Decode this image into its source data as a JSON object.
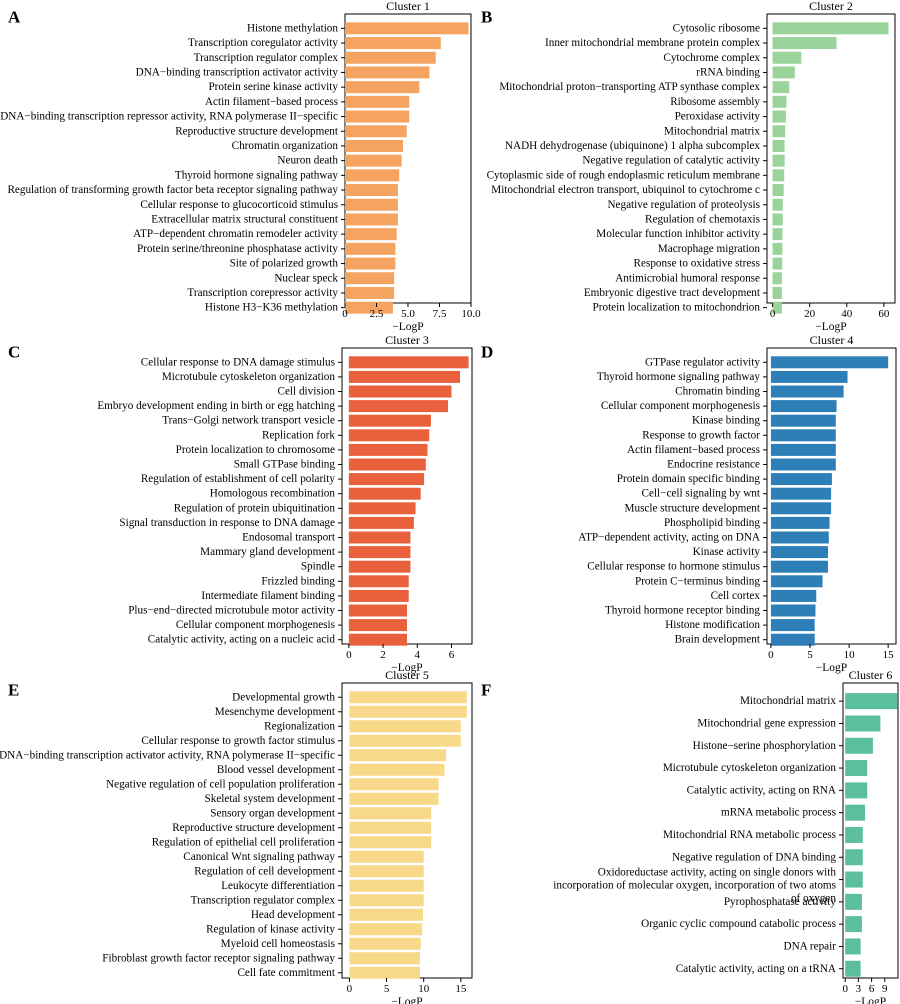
{
  "figure": {
    "panels": [
      {
        "letter": "A",
        "title": "Cluster 1",
        "color": "#F4A460",
        "xlabel": "−LogP",
        "plot": [
          345,
          14,
          471,
          303
        ],
        "xlim": [
          0,
          10
        ],
        "ticks": [
          0,
          2.5,
          5,
          7.5,
          10
        ],
        "tick_labels": [
          "0",
          "2.5",
          "5.0",
          "7.5",
          "10.0"
        ],
        "labelH": 14.7,
        "barH": 12
      },
      {
        "letter": "B",
        "title": "Cluster 2",
        "color": "#9AD49A",
        "xlabel": "−LogP",
        "plot": [
          767,
          14,
          895,
          303
        ],
        "xlim": [
          -3,
          66
        ],
        "ticks": [
          0,
          20,
          40,
          60
        ],
        "tick_labels": [
          "0",
          "20",
          "40",
          "60"
        ],
        "labelH": 14.7,
        "barH": 12
      },
      {
        "letter": "C",
        "title": "Cluster 3",
        "color": "#E8603C",
        "xlabel": "−LogP",
        "plot": [
          342,
          348,
          472,
          644
        ],
        "xlim": [
          -0.4,
          7.2
        ],
        "ticks": [
          0,
          2,
          4,
          6
        ],
        "tick_labels": [
          "0",
          "2",
          "4",
          "6"
        ],
        "labelH": 14.6,
        "barH": 12
      },
      {
        "letter": "D",
        "title": "Cluster 4",
        "color": "#2E7EB8",
        "xlabel": "−LogP",
        "plot": [
          767,
          348,
          896,
          644
        ],
        "xlim": [
          -0.5,
          16
        ],
        "ticks": [
          0,
          5,
          10,
          15
        ],
        "tick_labels": [
          "0",
          "5",
          "10",
          "15"
        ],
        "labelH": 14.6,
        "barH": 12
      },
      {
        "letter": "E",
        "title": "Cluster 5",
        "color": "#F8D98A",
        "xlabel": "−LogP",
        "plot": [
          342,
          683,
          472,
          978
        ],
        "xlim": [
          -1,
          16.5
        ],
        "ticks": [
          0,
          5,
          10,
          15
        ],
        "tick_labels": [
          "0",
          "5",
          "10",
          "15"
        ],
        "labelH": 14.5,
        "barH": 12
      },
      {
        "letter": "F",
        "title": "Cluster 6",
        "color": "#5BBF9B",
        "xlabel": "−LogP",
        "plot": [
          843,
          683,
          898,
          978
        ],
        "xlim": [
          -0.5,
          12
        ],
        "ticks": [
          0,
          3,
          6,
          9
        ],
        "tick_labels": [
          "0",
          "3",
          "6",
          "9"
        ],
        "labelH": 22.3,
        "barH": 16
      }
    ]
  },
  "chart_data": [
    {
      "type": "bar",
      "orientation": "horizontal",
      "title": "Cluster 1",
      "xlabel": "−LogP",
      "xlim": [
        0,
        10
      ],
      "categories": [
        "Histone methylation",
        "Transcription coregulator activity",
        "Transcription regulator complex",
        "DNA−binding transcription activator activity",
        "Protein serine kinase activity",
        "Actin filament−based process",
        "DNA−binding transcription repressor activity, RNA polymerase II−specific",
        "Reproductive structure development",
        "Chromatin organization",
        "Neuron death",
        "Thyroid hormone signaling pathway",
        "Regulation of transforming growth factor beta receptor signaling pathway",
        "Cellular response to glucocorticoid stimulus",
        "Extracellular matrix structural constituent",
        "ATP−dependent chromatin remodeler activity",
        "Protein serine/threonine phosphatase activity",
        "Site of polarized growth",
        "Nuclear speck",
        "Transcription corepressor activity",
        "Histone H3−K36 methylation"
      ],
      "values": [
        9.8,
        7.6,
        7.2,
        6.7,
        5.9,
        5.1,
        5.1,
        4.9,
        4.6,
        4.5,
        4.3,
        4.2,
        4.2,
        4.2,
        4.1,
        4.0,
        4.0,
        3.9,
        3.9,
        3.8
      ]
    },
    {
      "type": "bar",
      "orientation": "horizontal",
      "title": "Cluster 2",
      "xlabel": "−LogP",
      "xlim": [
        -3,
        66
      ],
      "categories": [
        "Cytosolic ribosome",
        "Inner mitochondrial membrane protein complex",
        "Cytochrome complex",
        "rRNA binding",
        "Mitochondrial proton−transporting ATP synthase complex",
        "Ribosome assembly",
        "Peroxidase activity",
        "Mitochondrial matrix",
        "NADH dehydrogenase (ubiquinone) 1 alpha subcomplex",
        "Negative regulation of catalytic activity",
        "Cytoplasmic side of rough endoplasmic reticulum membrane",
        "Mitochondrial electron transport, ubiquinol to cytochrome c",
        "Negative regulation of proteolysis",
        "Regulation of chemotaxis",
        "Molecular function inhibitor activity",
        "Macrophage migration",
        "Response to oxidative stress",
        "Antimicrobial humoral response",
        "Embryonic digestive tract development",
        "Protein localization to mitochondrion"
      ],
      "values": [
        62.5,
        34.5,
        15.5,
        12.0,
        9.0,
        7.5,
        7.2,
        6.8,
        6.5,
        6.5,
        6.3,
        6.0,
        5.5,
        5.5,
        5.3,
        5.3,
        5.2,
        5.0,
        5.0,
        5.0
      ]
    },
    {
      "type": "bar",
      "orientation": "horizontal",
      "title": "Cluster 3",
      "xlabel": "−LogP",
      "xlim": [
        -0.4,
        7.2
      ],
      "categories": [
        "Cellular response to DNA damage stimulus",
        "Microtubule cytoskeleton organization",
        "Cell division",
        "Embryo development ending in birth or egg hatching",
        "Trans−Golgi network transport vesicle",
        "Replication fork",
        "Protein localization to chromosome",
        "Small GTPase binding",
        "Regulation of establishment of cell polarity",
        "Homologous recombination",
        "Regulation of protein ubiquitination",
        "Signal transduction in response to DNA damage",
        "Endosomal transport",
        "Mammary gland development",
        "Spindle",
        "Frizzled binding",
        "Intermediate filament binding",
        "Plus−end−directed microtubule motor activity",
        "Cellular component morphogenesis",
        "Catalytic activity, acting on a nucleic acid"
      ],
      "values": [
        7.0,
        6.5,
        6.0,
        5.8,
        4.8,
        4.7,
        4.6,
        4.5,
        4.4,
        4.2,
        3.9,
        3.8,
        3.6,
        3.6,
        3.6,
        3.5,
        3.5,
        3.4,
        3.4,
        3.4
      ]
    },
    {
      "type": "bar",
      "orientation": "horizontal",
      "title": "Cluster 4",
      "xlabel": "−LogP",
      "xlim": [
        -0.5,
        16
      ],
      "categories": [
        "GTPase regulator activity",
        "Thyroid hormone signaling pathway",
        "Chromatin binding",
        "Cellular component morphogenesis",
        "Kinase binding",
        "Response to growth factor",
        "Actin filament−based process",
        "Endocrine resistance",
        "Protein domain specific binding",
        "Cell−cell signaling by wnt",
        "Muscle structure development",
        "Phospholipid binding",
        "ATP−dependent activity, acting on DNA",
        "Kinase activity",
        "Cellular response to hormone stimulus",
        "Protein C−terminus binding",
        "Cell cortex",
        "Thyroid hormone receptor binding",
        "Histone modification",
        "Brain development"
      ],
      "values": [
        15.0,
        9.8,
        9.3,
        8.4,
        8.3,
        8.3,
        8.3,
        8.3,
        7.8,
        7.7,
        7.7,
        7.5,
        7.4,
        7.3,
        7.3,
        6.6,
        5.8,
        5.7,
        5.6,
        5.6
      ]
    },
    {
      "type": "bar",
      "orientation": "horizontal",
      "title": "Cluster 5",
      "xlabel": "−LogP",
      "xlim": [
        -1,
        16.5
      ],
      "categories": [
        "Developmental growth",
        "Mesenchyme development",
        "Regionalization",
        "Cellular response to growth factor stimulus",
        "DNA−binding transcription activator activity, RNA polymerase II−specific",
        "Blood vessel development",
        "Negative regulation of cell population proliferation",
        "Skeletal system development",
        "Sensory organ development",
        "Reproductive structure development",
        "Regulation of epithelial cell proliferation",
        "Canonical Wnt signaling pathway",
        "Regulation of cell development",
        "Leukocyte differentiation",
        "Transcription regulator complex",
        "Head development",
        "Regulation of kinase activity",
        "Myeloid cell homeostasis",
        "Fibroblast growth factor receptor signaling pathway",
        "Cell fate commitment"
      ],
      "values": [
        15.8,
        15.8,
        15.0,
        15.0,
        13.0,
        12.8,
        12.0,
        12.0,
        11.0,
        11.0,
        11.0,
        10.0,
        10.0,
        10.0,
        10.0,
        9.9,
        9.8,
        9.6,
        9.5,
        9.5
      ]
    },
    {
      "type": "bar",
      "orientation": "horizontal",
      "title": "Cluster 6",
      "xlabel": "−LogP",
      "xlim": [
        -0.5,
        12
      ],
      "categories": [
        "Mitochondrial matrix",
        "Mitochondrial gene expression",
        "Histone−serine phosphorylation",
        "Microtubule cytoskeleton organization",
        "Catalytic activity, acting on RNA",
        "mRNA metabolic process",
        "Mitochondrial RNA metabolic process",
        "Negative regulation of DNA binding",
        "Oxidoreductase activity, acting on single donors with incorporation of molecular oxygen, incorporation of two atoms of oxygen",
        "Pyrophosphatase activity",
        "Organic cyclic compound catabolic process",
        "DNA repair",
        "Catalytic activity, acting on a tRNA"
      ],
      "values": [
        11.8,
        8.0,
        6.3,
        5.0,
        5.0,
        4.5,
        4.0,
        4.0,
        4.0,
        3.8,
        3.8,
        3.5,
        3.5
      ]
    }
  ]
}
